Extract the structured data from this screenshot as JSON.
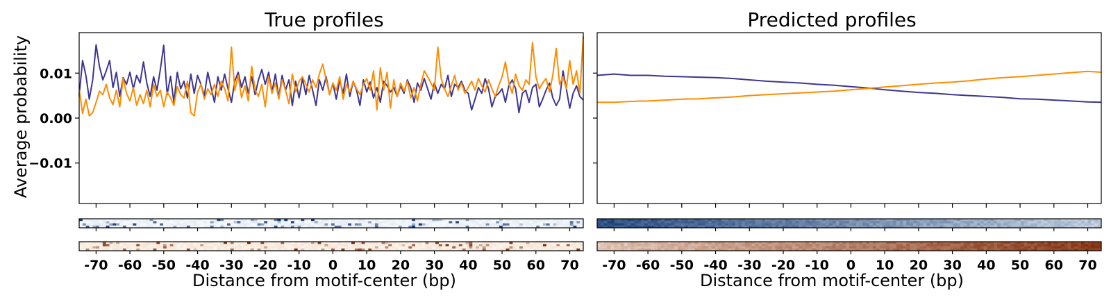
{
  "chart_data": [
    {
      "type": "line",
      "panel": "left",
      "title": "True profiles",
      "ylabel": "Average probability",
      "xlabel": "Distance from motif-center (bp)",
      "xlim": [
        -75,
        74
      ],
      "ylim": [
        -0.019,
        0.019
      ],
      "yticks": [
        -0.01,
        0.0,
        0.01
      ],
      "ytick_labels": [
        "−0.01",
        "0.00",
        "0.01"
      ],
      "xticks": [
        -70,
        -60,
        -50,
        -40,
        -30,
        -20,
        -10,
        0,
        10,
        20,
        30,
        40,
        50,
        60,
        70
      ],
      "xtick_labels": [
        "-70",
        "-60",
        "-50",
        "-40",
        "-30",
        "-20",
        "-10",
        "0",
        "10",
        "20",
        "30",
        "40",
        "50",
        "60",
        "70"
      ],
      "grid": false,
      "series": [
        {
          "color": "#3d3590",
          "x": [
            -75,
            -74,
            -73,
            -72,
            -71,
            -70,
            -69,
            -68,
            -67,
            -66,
            -65,
            -64,
            -63,
            -62,
            -61,
            -60,
            -59,
            -58,
            -57,
            -56,
            -55,
            -54,
            -53,
            -52,
            -51,
            -50,
            -49,
            -48,
            -47,
            -46,
            -45,
            -44,
            -43,
            -42,
            -41,
            -40,
            -39,
            -38,
            -37,
            -36,
            -35,
            -34,
            -33,
            -32,
            -31,
            -30,
            -29,
            -28,
            -27,
            -26,
            -25,
            -24,
            -23,
            -22,
            -21,
            -20,
            -19,
            -18,
            -17,
            -16,
            -15,
            -14,
            -13,
            -12,
            -11,
            -10,
            -9,
            -8,
            -7,
            -6,
            -5,
            -4,
            -3,
            -2,
            -1,
            0,
            1,
            2,
            3,
            4,
            5,
            6,
            7,
            8,
            9,
            10,
            11,
            12,
            13,
            14,
            15,
            16,
            17,
            18,
            19,
            20,
            21,
            22,
            23,
            24,
            25,
            26,
            27,
            28,
            29,
            30,
            31,
            32,
            33,
            34,
            35,
            36,
            37,
            38,
            39,
            40,
            41,
            42,
            43,
            44,
            45,
            46,
            47,
            48,
            49,
            50,
            51,
            52,
            53,
            54,
            55,
            56,
            57,
            58,
            59,
            60,
            61,
            62,
            63,
            64,
            65,
            66,
            67,
            68,
            69,
            70,
            71,
            72,
            73,
            74
          ],
          "y": [
            0.005,
            0.0128,
            0.0095,
            0.0042,
            0.0085,
            0.0163,
            0.0115,
            0.0085,
            0.0105,
            0.0128,
            0.0068,
            0.0102,
            0.0048,
            0.009,
            0.0075,
            0.0102,
            0.0065,
            0.0095,
            0.0078,
            0.0125,
            0.0078,
            0.0048,
            0.0092,
            0.0062,
            0.0108,
            0.0162,
            0.0052,
            0.0093,
            0.0035,
            0.0102,
            0.0065,
            0.0082,
            0.0045,
            0.0098,
            0.0055,
            0.0095,
            0.0075,
            0.005,
            0.0102,
            0.0068,
            0.0035,
            0.0092,
            0.0062,
            0.0098,
            0.0065,
            0.0035,
            0.0082,
            0.0102,
            0.0068,
            0.0092,
            0.0055,
            0.0092,
            0.0052,
            0.0085,
            0.0108,
            0.0075,
            0.0102,
            0.0058,
            0.0098,
            0.0045,
            0.0095,
            0.0062,
            0.0085,
            0.0028,
            0.0082,
            0.0045,
            0.0088,
            0.0052,
            0.0095,
            0.0062,
            0.0028,
            0.0085,
            0.0062,
            0.0092,
            0.0052,
            0.0078,
            0.0042,
            0.0085,
            0.0055,
            0.0098,
            0.0048,
            0.0082,
            0.0062,
            0.0028,
            0.0085,
            0.0058,
            0.008,
            0.0045,
            0.0068,
            0.0035,
            0.0082,
            0.0072,
            0.0058,
            0.0068,
            0.0048,
            0.0072,
            0.0055,
            0.0085,
            0.0068,
            0.0035,
            0.0078,
            0.0062,
            0.0088,
            0.0065,
            0.0042,
            0.0078,
            0.0055,
            0.0075,
            0.0065,
            0.0095,
            0.0048,
            0.0075,
            0.0068,
            0.0082,
            0.0062,
            0.0055,
            0.0018,
            0.0042,
            0.0068,
            0.0055,
            0.0088,
            0.0065,
            0.0025,
            0.0048,
            0.0055,
            0.0065,
            0.0035,
            0.0072,
            0.0085,
            0.0065,
            0.0012,
            0.0055,
            0.0062,
            0.0035,
            0.0068,
            0.0075,
            0.0025,
            0.0042,
            0.0062,
            0.0078,
            0.0045,
            0.0028,
            0.0042,
            0.0105,
            0.0065,
            0.0022,
            0.0055,
            0.0072,
            0.0048,
            0.004
          ]
        },
        {
          "color": "#ff8c00",
          "x": [
            -75,
            -74,
            -73,
            -72,
            -71,
            -70,
            -69,
            -68,
            -67,
            -66,
            -65,
            -64,
            -63,
            -62,
            -61,
            -60,
            -59,
            -58,
            -57,
            -56,
            -55,
            -54,
            -53,
            -52,
            -51,
            -50,
            -49,
            -48,
            -47,
            -46,
            -45,
            -44,
            -43,
            -42,
            -41,
            -40,
            -39,
            -38,
            -37,
            -36,
            -35,
            -34,
            -33,
            -32,
            -31,
            -30,
            -29,
            -28,
            -27,
            -26,
            -25,
            -24,
            -23,
            -22,
            -21,
            -20,
            -19,
            -18,
            -17,
            -16,
            -15,
            -14,
            -13,
            -12,
            -11,
            -10,
            -9,
            -8,
            -7,
            -6,
            -5,
            -4,
            -3,
            -2,
            -1,
            0,
            1,
            2,
            3,
            4,
            5,
            6,
            7,
            8,
            9,
            10,
            11,
            12,
            13,
            14,
            15,
            16,
            17,
            18,
            19,
            20,
            21,
            22,
            23,
            24,
            25,
            26,
            27,
            28,
            29,
            30,
            31,
            32,
            33,
            34,
            35,
            36,
            37,
            38,
            39,
            40,
            41,
            42,
            43,
            44,
            45,
            46,
            47,
            48,
            49,
            50,
            51,
            52,
            53,
            54,
            55,
            56,
            57,
            58,
            59,
            60,
            61,
            62,
            63,
            64,
            65,
            66,
            67,
            68,
            69,
            70,
            71,
            72,
            73,
            74
          ],
          "y": [
            0.0065,
            0.001,
            0.0042,
            0.0005,
            0.0012,
            0.0035,
            0.006,
            0.0052,
            0.0075,
            0.0045,
            0.003,
            0.0062,
            0.0025,
            0.0088,
            0.0055,
            0.0038,
            0.0068,
            0.0028,
            0.0052,
            0.0032,
            0.0062,
            0.0025,
            0.0075,
            0.0048,
            0.0062,
            0.0025,
            0.0058,
            0.0045,
            0.0028,
            0.007,
            0.0052,
            0.0045,
            0.0082,
            0.0012,
            0.0005,
            0.0058,
            0.0075,
            0.0042,
            0.0065,
            0.0052,
            0.0075,
            0.0048,
            0.0082,
            0.0065,
            0.0038,
            0.0158,
            0.0062,
            0.0095,
            0.0045,
            0.0072,
            0.0038,
            0.0115,
            0.0062,
            0.0048,
            0.0075,
            0.0025,
            0.0092,
            0.0055,
            0.0078,
            0.0042,
            0.0085,
            0.0062,
            0.0032,
            0.0098,
            0.0058,
            0.0082,
            0.0092,
            0.0075,
            0.0058,
            0.0085,
            0.0068,
            0.0098,
            0.012,
            0.0085,
            0.0052,
            0.0078,
            0.0062,
            0.0092,
            0.0042,
            0.0075,
            0.0058,
            0.0082,
            0.0065,
            0.0052,
            0.0075,
            0.0088,
            0.0062,
            0.0105,
            0.0018,
            0.0112,
            0.0062,
            0.0102,
            0.0022,
            0.0085,
            0.0048,
            0.0078,
            0.006,
            0.0082,
            0.0045,
            0.0068,
            0.0038,
            0.0075,
            0.0105,
            0.0092,
            0.0078,
            0.0062,
            0.0158,
            0.0088,
            0.0065,
            0.0048,
            0.0072,
            0.0095,
            0.0062,
            0.0078,
            0.0055,
            0.0068,
            0.0082,
            0.0062,
            0.0088,
            0.0072,
            0.0058,
            0.0085,
            0.0065,
            0.0048,
            0.0072,
            0.0092,
            0.0125,
            0.0078,
            0.0055,
            0.0098,
            0.0072,
            0.0062,
            0.0085,
            0.0075,
            0.0168,
            0.0092,
            0.0065,
            0.0078,
            0.0088,
            0.0058,
            0.0095,
            0.0155,
            0.0075,
            0.0092,
            0.0065,
            0.0128,
            0.0075,
            0.0105,
            0.0055,
            0.0182
          ]
        }
      ]
    },
    {
      "type": "line",
      "panel": "right",
      "title": "Predicted profiles",
      "xlabel": "Distance from motif-center (bp)",
      "xlim": [
        -75,
        74
      ],
      "ylim": [
        -0.019,
        0.019
      ],
      "xticks": [
        -70,
        -60,
        -50,
        -40,
        -30,
        -20,
        -10,
        0,
        10,
        20,
        30,
        40,
        50,
        60,
        70
      ],
      "xtick_labels": [
        "-70",
        "-60",
        "-50",
        "-40",
        "-30",
        "-20",
        "-10",
        "0",
        "10",
        "20",
        "30",
        "40",
        "50",
        "60",
        "70"
      ],
      "grid": false,
      "series": [
        {
          "color": "#3d3590",
          "x": [
            -75,
            -70,
            -65,
            -60,
            -55,
            -50,
            -45,
            -40,
            -35,
            -30,
            -25,
            -20,
            -15,
            -10,
            -5,
            0,
            5,
            10,
            15,
            20,
            25,
            30,
            35,
            40,
            45,
            50,
            55,
            60,
            65,
            70,
            74
          ],
          "y": [
            0.0095,
            0.0098,
            0.0095,
            0.0095,
            0.0093,
            0.0092,
            0.0091,
            0.009,
            0.0088,
            0.0085,
            0.0082,
            0.008,
            0.0078,
            0.0075,
            0.0073,
            0.007,
            0.0067,
            0.0063,
            0.006,
            0.0057,
            0.0055,
            0.0052,
            0.005,
            0.0048,
            0.0046,
            0.0043,
            0.0042,
            0.004,
            0.0038,
            0.0036,
            0.0035
          ]
        },
        {
          "color": "#ff8c00",
          "x": [
            -75,
            -70,
            -65,
            -60,
            -55,
            -50,
            -45,
            -40,
            -35,
            -30,
            -25,
            -20,
            -15,
            -10,
            -5,
            0,
            5,
            10,
            15,
            20,
            25,
            30,
            35,
            40,
            45,
            50,
            55,
            60,
            65,
            70,
            74
          ],
          "y": [
            0.0035,
            0.0035,
            0.0037,
            0.0038,
            0.004,
            0.0042,
            0.0043,
            0.0045,
            0.0047,
            0.005,
            0.0052,
            0.0054,
            0.0056,
            0.0058,
            0.006,
            0.0063,
            0.0066,
            0.0069,
            0.0072,
            0.0075,
            0.0078,
            0.008,
            0.0083,
            0.0087,
            0.009,
            0.0092,
            0.0095,
            0.0098,
            0.0101,
            0.0104,
            0.0102
          ]
        }
      ]
    },
    {
      "type": "heatmap",
      "panel": "left",
      "strips": [
        {
          "colormap": "Blues",
          "pattern": "sparse"
        },
        {
          "colormap": "Oranges",
          "pattern": "sparse"
        }
      ]
    },
    {
      "type": "heatmap",
      "panel": "right",
      "strips": [
        {
          "colormap": "Blues",
          "pattern": "decreasing"
        },
        {
          "colormap": "Oranges",
          "pattern": "increasing"
        }
      ]
    }
  ]
}
